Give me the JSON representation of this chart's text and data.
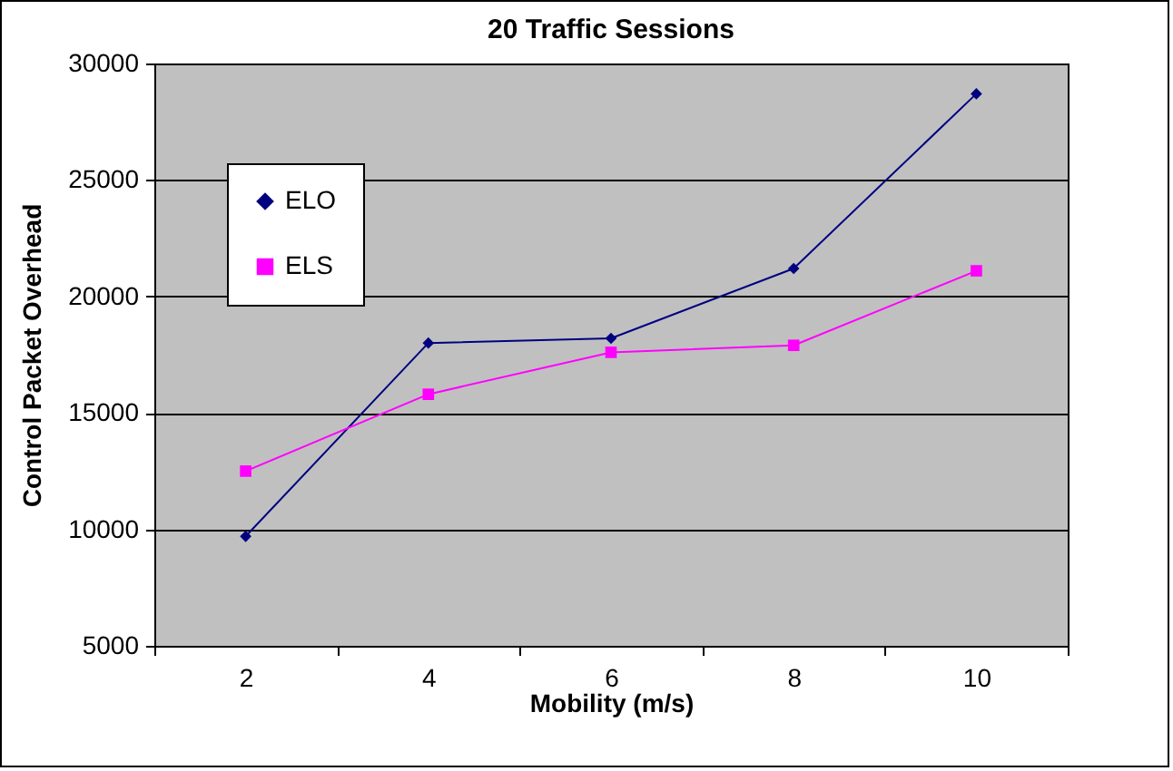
{
  "chart_data": {
    "type": "line",
    "title": "20 Traffic Sessions",
    "xlabel": "Mobility (m/s)",
    "ylabel": "Control Packet Overhead",
    "categories": [
      "2",
      "4",
      "6",
      "8",
      "10"
    ],
    "series": [
      {
        "name": "ELO",
        "color": "#000080",
        "marker": "diamond",
        "values": [
          9700,
          18000,
          18200,
          21200,
          28700
        ]
      },
      {
        "name": "ELS",
        "color": "#ff00ff",
        "marker": "square",
        "values": [
          12500,
          15800,
          17600,
          17900,
          21100
        ]
      }
    ],
    "ylim": [
      5000,
      30000
    ],
    "yticks": [
      5000,
      10000,
      15000,
      20000,
      25000,
      30000
    ],
    "grid": "y",
    "legend": "top left",
    "line_style": "solid"
  }
}
